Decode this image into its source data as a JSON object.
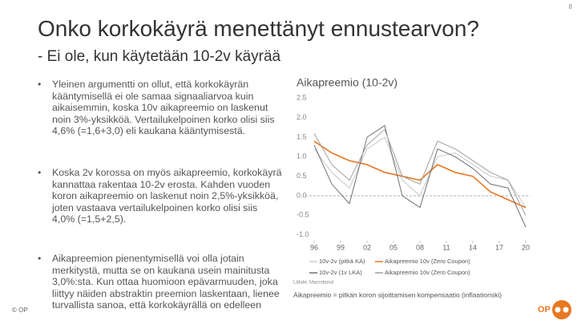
{
  "page_number": "8",
  "title": "Onko korkokäyrä menettänyt ennustearvon?",
  "subtitle": "- Ei ole, kun käytetään 10-2v käyrää",
  "bullets": [
    "Yleinen argumentti on ollut, että korkokäyrän kääntymisellä ei ole samaa signaaliarvoa kuin aikaisemmin, koska 10v aikapreemio on laskenut noin 3%-yksikköä. Vertailukelpoinen korko olisi siis 4,6% (=1,6+3,0) eli kaukana kääntymisestä.",
    "Koska 2v korossa on myös aikapreemio, korkokäyrä kannattaa rakentaa 10-2v erosta. Kahden vuoden koron aikapreemio on laskenut noin 2,5%-yksikköä, joten vastaava vertailukelpoinen korko olisi siis 4,0% (=1,5+2,5).",
    "Aikapreemion pienentymisellä voi olla jotain merkitystä, mutta se on kaukana usein mainitusta 3,0%:sta. Kun ottaa huomioon epävarmuuden, joka liittyy näiden abstraktin preemion laskentaan, lienee turvallista sanoa, että korkokäyrällä on edelleen"
  ],
  "footer": "© OP",
  "chart_data": {
    "type": "line",
    "title": "Aikapreemio (10-2v)",
    "x": [
      1996,
      1998,
      2000,
      2002,
      2004,
      2006,
      2008,
      2010,
      2012,
      2014,
      2016,
      2018,
      2020
    ],
    "xlim": [
      1995,
      2020.5
    ],
    "xticks": [
      {
        "value": 1996,
        "label": "96"
      },
      {
        "value": 1999,
        "label": "99"
      },
      {
        "value": 2002,
        "label": "02"
      },
      {
        "value": 2005,
        "label": "05"
      },
      {
        "value": 2008,
        "label": "08"
      },
      {
        "value": 2011,
        "label": "11"
      },
      {
        "value": 2014,
        "label": "14"
      },
      {
        "value": 2017,
        "label": "17"
      },
      {
        "value": 2020,
        "label": "20"
      }
    ],
    "ylim": [
      -1.15,
      2.65
    ],
    "yticks": [
      2.5,
      {
        "value": 2,
        "label": "2.0"
      },
      1.5,
      {
        "value": 1,
        "label": "1.0"
      },
      0.5,
      {
        "value": 0,
        "label": "0.0"
      },
      -0.5,
      {
        "value": -1,
        "label": "-1.0"
      }
    ],
    "series": [
      {
        "name": "10v-2v (pitkä KA)",
        "color": "#c8c8c8",
        "values": [
          1.2,
          0.6,
          0.2,
          1.2,
          1.5,
          0.4,
          0.0,
          1.0,
          1.1,
          0.8,
          0.5,
          0.4,
          -0.3
        ]
      },
      {
        "name": "Aikapreemio 10v (Zero Coupon)",
        "color": "#e87722",
        "values": [
          1.4,
          1.1,
          0.9,
          0.8,
          0.6,
          0.5,
          0.4,
          0.8,
          0.6,
          0.5,
          0.1,
          -0.1,
          -0.3
        ]
      },
      {
        "name": "10v-2v (1v LKA)",
        "color": "#707070",
        "values": [
          1.3,
          0.3,
          -0.2,
          1.5,
          1.8,
          0.0,
          -0.3,
          1.2,
          1.0,
          0.7,
          0.3,
          0.2,
          -0.8
        ]
      },
      {
        "name": "Aikapreemio 10v (Zero Coupon)",
        "color": "#a0a0a0",
        "values": [
          1.6,
          0.8,
          0.4,
          1.3,
          1.7,
          0.5,
          0.3,
          1.4,
          1.2,
          0.9,
          0.6,
          0.4,
          -0.5
        ]
      }
    ],
    "source": "Lähde: Macrobond",
    "note": "Aikapreemio = pitkän koron sijoittamisen kompensaatio (inflaatioriski)"
  }
}
